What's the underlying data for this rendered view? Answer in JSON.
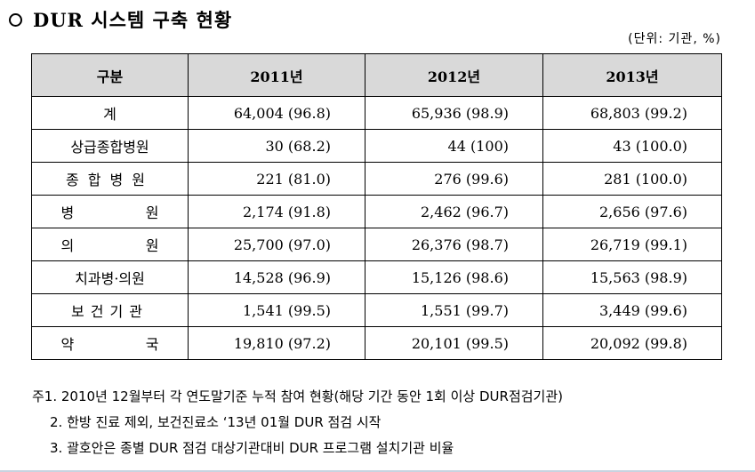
{
  "title": "DUR 시스템 구축 현황",
  "unit": "(단위: 기관, %)",
  "table": {
    "headers": [
      "구분",
      "2011년",
      "2012년",
      "2013년"
    ],
    "rows": [
      {
        "label": "계",
        "y2011": "64,004  (96.8)",
        "y2012": "65,936  (98.9)",
        "y2013": "68,803  (99.2)"
      },
      {
        "label": "상급종합병원",
        "y2011": "30  (68.2)",
        "y2012": "44  (100)",
        "y2013": "43  (100.0)"
      },
      {
        "label": "종합병원",
        "y2011": "221  (81.0)",
        "y2012": "276  (99.6)",
        "y2013": "281  (100.0)"
      },
      {
        "label_a": "병",
        "label_b": "원",
        "y2011": "2,174  (91.8)",
        "y2012": "2,462  (96.7)",
        "y2013": "2,656  (97.6)"
      },
      {
        "label_a": "의",
        "label_b": "원",
        "y2011": "25,700  (97.0)",
        "y2012": "26,376  (98.7)",
        "y2013": "26,719  (99.1)"
      },
      {
        "label": "치과병·의원",
        "y2011": "14,528  (96.9)",
        "y2012": "15,126  (98.6)",
        "y2013": "15,563  (98.9)"
      },
      {
        "label": "보건기관",
        "y2011": "1,541  (99.5)",
        "y2012": "1,551  (99.7)",
        "y2013": "3,449  (99.6)"
      },
      {
        "label_a": "약",
        "label_b": "국",
        "y2011": "19,810  (97.2)",
        "y2012": "20,101  (99.5)",
        "y2013": "20,092  (99.8)"
      }
    ]
  },
  "notes": [
    "주1. 2010년 12월부터 각 연도말기준 누적 참여 현황(해당 기간 동안 1회 이상 DUR점검기관)",
    "2. 한방 진료 제외, 보건진료소 ‘13년 01월 DUR 점검 시작",
    "3. 괄호안은 종별 DUR 점검 대상기관대비 DUR 프로그램 설치기관 비율"
  ]
}
